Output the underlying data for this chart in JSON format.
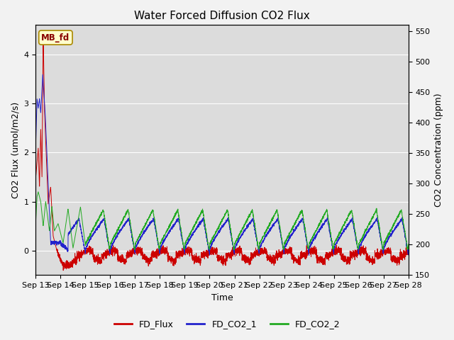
{
  "title": "Water Forced Diffusion CO2 Flux",
  "xlabel": "Time",
  "ylabel_left": "CO2 Flux (umol/m2/s)",
  "ylabel_right": "CO2 Concentration (ppm)",
  "ylim_left": [
    -0.5,
    4.6
  ],
  "ylim_right": [
    150,
    560
  ],
  "plot_bg_color": "#dcdcdc",
  "fig_bg_color": "#f2f2f2",
  "label_box": "MB_fd",
  "label_box_color": "#ffffcc",
  "label_box_edge": "#aa8800",
  "label_box_text_color": "#880000",
  "legend_entries": [
    "FD_Flux",
    "FD_CO2_1",
    "FD_CO2_2"
  ],
  "line_colors": [
    "#cc0000",
    "#2222cc",
    "#22aa22"
  ],
  "xtick_labels": [
    "Sep 13",
    "Sep 14",
    "Sep 15",
    "Sep 16",
    "Sep 17",
    "Sep 18",
    "Sep 19",
    "Sep 20",
    "Sep 21",
    "Sep 22",
    "Sep 23",
    "Sep 24",
    "Sep 25",
    "Sep 26",
    "Sep 27",
    "Sep 28"
  ],
  "grid_color": "#ffffff",
  "title_fontsize": 11,
  "axis_fontsize": 9,
  "tick_fontsize": 8,
  "legend_fontsize": 9
}
